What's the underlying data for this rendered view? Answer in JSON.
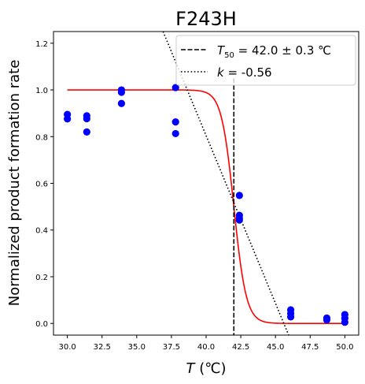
{
  "chart_data": {
    "type": "scatter",
    "title": "F243H",
    "xlabel": {
      "italic": "T",
      "rest": " (℃)"
    },
    "ylabel": "Normalized product formation rate",
    "xlim": [
      29.0,
      51.0
    ],
    "ylim": [
      -0.05,
      1.25
    ],
    "xticks": [
      "30.0",
      "32.5",
      "35.0",
      "37.5",
      "40.0",
      "42.5",
      "45.0",
      "47.5",
      "50.0"
    ],
    "yticks": [
      "0.0",
      "0.2",
      "0.4",
      "0.6",
      "0.8",
      "1.0",
      "1.2"
    ],
    "grid": false,
    "legend_position": "top-right",
    "colors": {
      "points": "#0000ff",
      "fit": "#ff0000",
      "reference": "#000000"
    },
    "points": [
      {
        "x": 30.0,
        "y": 0.895
      },
      {
        "x": 30.0,
        "y": 0.876
      },
      {
        "x": 31.4,
        "y": 0.889
      },
      {
        "x": 31.4,
        "y": 0.877
      },
      {
        "x": 31.4,
        "y": 0.82
      },
      {
        "x": 33.9,
        "y": 1.0
      },
      {
        "x": 33.9,
        "y": 0.99
      },
      {
        "x": 33.9,
        "y": 0.942
      },
      {
        "x": 37.8,
        "y": 1.01
      },
      {
        "x": 37.8,
        "y": 0.863
      },
      {
        "x": 37.8,
        "y": 0.813
      },
      {
        "x": 42.4,
        "y": 0.548
      },
      {
        "x": 42.4,
        "y": 0.463
      },
      {
        "x": 42.4,
        "y": 0.45
      },
      {
        "x": 42.4,
        "y": 0.443
      },
      {
        "x": 46.1,
        "y": 0.058
      },
      {
        "x": 46.1,
        "y": 0.043
      },
      {
        "x": 46.1,
        "y": 0.028
      },
      {
        "x": 48.7,
        "y": 0.023
      },
      {
        "x": 48.7,
        "y": 0.015
      },
      {
        "x": 50.0,
        "y": 0.038
      },
      {
        "x": 50.0,
        "y": 0.022
      },
      {
        "x": 50.0,
        "y": 0.005
      }
    ],
    "fit": {
      "type": "sigmoid",
      "T50": 42.0,
      "k": -0.56,
      "x_range": [
        30.0,
        50.0
      ]
    },
    "t50_line": {
      "x": 42.0,
      "y_range": [
        -0.05,
        1.05
      ]
    },
    "tangent": {
      "x_at_top": 36.9,
      "x_at_bottom": 45.95
    },
    "legend": [
      {
        "style": "dashed",
        "sym": "T",
        "sub": "50",
        "text": " = 42.0 ± 0.3 ℃"
      },
      {
        "style": "dotted",
        "sym": "k",
        "sub": "",
        "text": " = -0.56"
      }
    ]
  }
}
